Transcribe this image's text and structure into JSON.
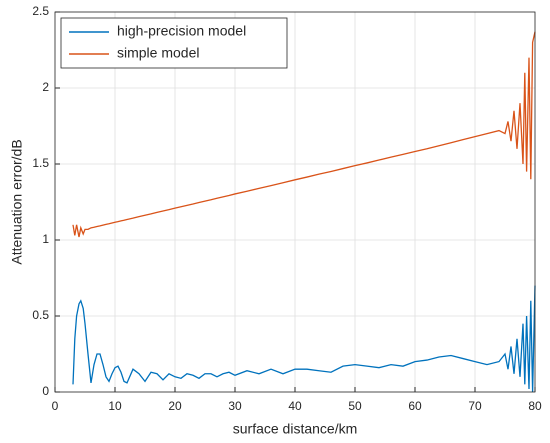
{
  "chart_data": {
    "type": "line",
    "x_label": "surface distance/km",
    "y_label": "Attenuation error/dB",
    "x": [
      3,
      3.3,
      3.6,
      4,
      4.3,
      4.7,
      5,
      5.5,
      6,
      6.5,
      7,
      7.5,
      8,
      8.5,
      9,
      9.5,
      10,
      10.5,
      11,
      11.5,
      12,
      13,
      14,
      15,
      16,
      17,
      18,
      19,
      20,
      21,
      22,
      23,
      24,
      25,
      26,
      27,
      28,
      29,
      30,
      32,
      34,
      36,
      38,
      40,
      42,
      44,
      46,
      48,
      50,
      52,
      54,
      56,
      58,
      60,
      62,
      64,
      66,
      68,
      70,
      72,
      74,
      75,
      75.5,
      76,
      76.5,
      77,
      77.5,
      78,
      78.3,
      78.6,
      79,
      79.3,
      79.6,
      80
    ],
    "series": [
      {
        "name": "high-precision model",
        "color": "#0072bd",
        "values": [
          0.05,
          0.35,
          0.5,
          0.58,
          0.6,
          0.55,
          0.45,
          0.25,
          0.06,
          0.18,
          0.25,
          0.25,
          0.18,
          0.1,
          0.07,
          0.12,
          0.16,
          0.17,
          0.13,
          0.07,
          0.06,
          0.15,
          0.12,
          0.07,
          0.13,
          0.12,
          0.08,
          0.12,
          0.1,
          0.09,
          0.12,
          0.11,
          0.09,
          0.12,
          0.12,
          0.1,
          0.12,
          0.13,
          0.11,
          0.14,
          0.12,
          0.15,
          0.12,
          0.15,
          0.15,
          0.14,
          0.13,
          0.17,
          0.18,
          0.17,
          0.16,
          0.18,
          0.17,
          0.2,
          0.21,
          0.23,
          0.24,
          0.22,
          0.2,
          0.18,
          0.2,
          0.25,
          0.15,
          0.3,
          0.12,
          0.35,
          0.1,
          0.45,
          0.05,
          0.5,
          0.02,
          0.6,
          0.0,
          0.7
        ]
      },
      {
        "name": "simple model",
        "color": "#d95319",
        "values": [
          1.1,
          1.03,
          1.1,
          1.02,
          1.08,
          1.04,
          1.07,
          1.07,
          1.08,
          1.084,
          1.089,
          1.093,
          1.098,
          1.103,
          1.107,
          1.112,
          1.117,
          1.121,
          1.126,
          1.13,
          1.135,
          1.144,
          1.154,
          1.163,
          1.172,
          1.182,
          1.191,
          1.2,
          1.21,
          1.219,
          1.228,
          1.237,
          1.247,
          1.256,
          1.265,
          1.275,
          1.284,
          1.293,
          1.303,
          1.321,
          1.34,
          1.358,
          1.377,
          1.396,
          1.414,
          1.433,
          1.451,
          1.47,
          1.489,
          1.507,
          1.526,
          1.545,
          1.563,
          1.582,
          1.6,
          1.62,
          1.64,
          1.66,
          1.68,
          1.7,
          1.72,
          1.7,
          1.78,
          1.65,
          1.85,
          1.6,
          1.9,
          1.5,
          2.1,
          1.45,
          2.2,
          1.4,
          2.3,
          2.37
        ]
      }
    ],
    "xlim": [
      0,
      80
    ],
    "xticks": [
      0,
      10,
      20,
      30,
      40,
      50,
      60,
      70,
      80
    ],
    "ylim": [
      0,
      2.5
    ],
    "yticks": [
      0,
      0.5,
      1,
      1.5,
      2,
      2.5
    ],
    "grid": true,
    "legend": "upper left"
  }
}
